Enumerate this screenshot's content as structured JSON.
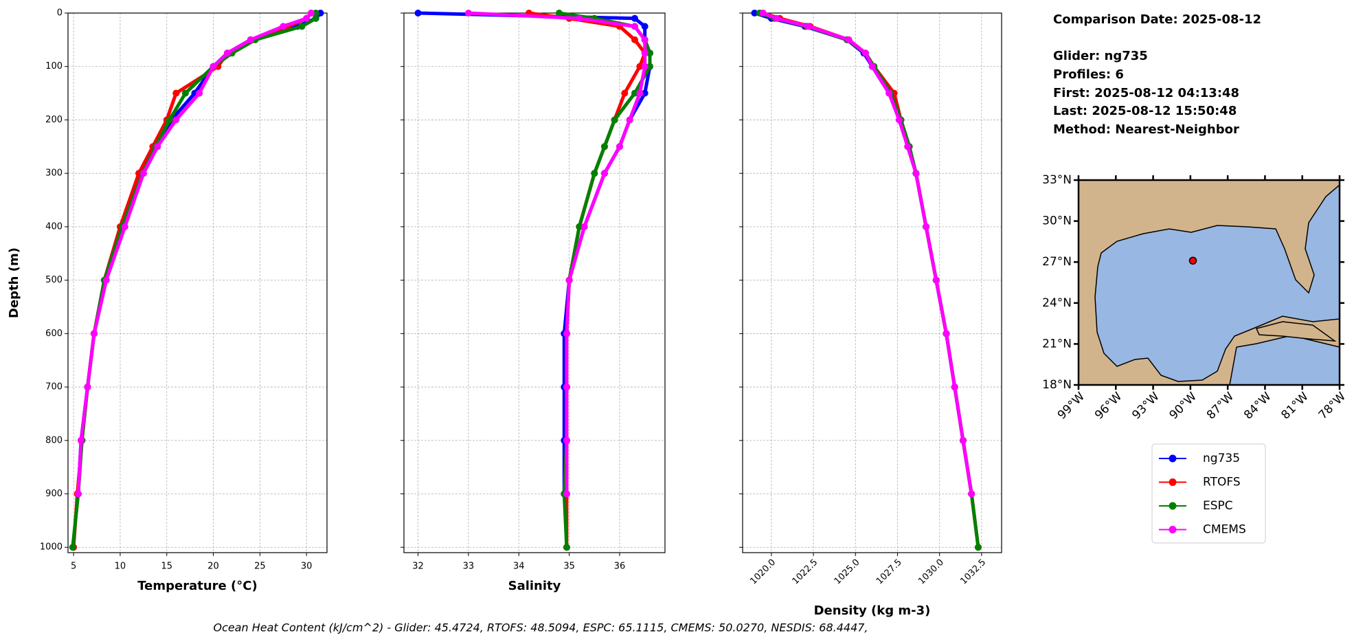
{
  "chart_data": [
    {
      "type": "line",
      "xlabel": "Temperature (°C)",
      "ylabel": "Depth (m)",
      "depths": [
        0,
        10,
        25,
        50,
        75,
        100,
        150,
        200,
        250,
        300,
        400,
        500,
        600,
        700,
        800,
        900,
        1000
      ],
      "ylim": [
        0,
        1010
      ],
      "yticks": [
        0,
        100,
        200,
        300,
        400,
        500,
        600,
        700,
        800,
        900,
        1000
      ],
      "xlim": [
        4.4,
        32.2
      ],
      "xticks": [
        5,
        10,
        15,
        20,
        25,
        30
      ],
      "grid": true,
      "series": [
        {
          "name": "ng735",
          "color": "#0000ff",
          "values": [
            31.5,
            31,
            29,
            24,
            21.5,
            20,
            18,
            15.5,
            14,
            12.5,
            10.5,
            8.5,
            7.2,
            6.5,
            5.8,
            5.5,
            null
          ]
        },
        {
          "name": "RTOFS",
          "color": "#ff0000",
          "values": [
            30.5,
            30,
            28,
            24,
            21.5,
            20.5,
            16,
            15,
            13.5,
            12,
            10,
            8.3,
            7.2,
            6.5,
            5.9,
            5.4,
            5.0
          ]
        },
        {
          "name": "ESPC",
          "color": "#008000",
          "values": [
            31,
            31,
            29.5,
            24.5,
            22,
            20,
            17,
            15.3,
            13.8,
            12.4,
            10.2,
            8.3,
            7.2,
            6.5,
            5.9,
            5.5,
            4.9
          ]
        },
        {
          "name": "CMEMS",
          "color": "#ff00ff",
          "values": [
            30.5,
            30,
            27.5,
            24,
            21.5,
            20,
            18.5,
            16,
            14,
            12.5,
            10.5,
            8.5,
            7.2,
            6.5,
            5.8,
            5.5,
            null
          ]
        }
      ]
    },
    {
      "type": "line",
      "xlabel": "Salinity",
      "xlim": [
        31.72,
        36.9
      ],
      "xticks": [
        32,
        33,
        34,
        35,
        36
      ],
      "grid": true,
      "series": [
        {
          "color": "#0000ff",
          "values": [
            32.0,
            36.3,
            36.5,
            36.5,
            36.6,
            36.6,
            36.5,
            36.2,
            36.0,
            35.7,
            35.3,
            35.0,
            34.9,
            34.9,
            34.9,
            34.9,
            null
          ]
        },
        {
          "color": "#ff0000",
          "values": [
            34.2,
            35.0,
            36.0,
            36.3,
            36.5,
            36.4,
            36.1,
            35.9,
            35.7,
            35.5,
            35.2,
            35.0,
            34.95,
            34.95,
            34.95,
            34.95,
            34.95
          ]
        },
        {
          "color": "#008000",
          "values": [
            34.8,
            35.5,
            36.3,
            36.5,
            36.6,
            36.6,
            36.3,
            35.9,
            35.7,
            35.5,
            35.2,
            35.0,
            34.95,
            34.95,
            34.95,
            34.9,
            34.95
          ]
        },
        {
          "color": "#ff00ff",
          "values": [
            33.0,
            35.2,
            36.3,
            36.5,
            36.5,
            36.5,
            36.4,
            36.2,
            36.0,
            35.7,
            35.3,
            35.0,
            34.95,
            34.95,
            34.95,
            34.95,
            null
          ]
        }
      ]
    },
    {
      "type": "line",
      "xlabel": "Density (kg m-3)",
      "xlim": [
        1018.29,
        1033.69
      ],
      "xticks": [
        {
          "value": 1020,
          "label": "1020.0"
        },
        {
          "value": 1022.5,
          "label": "1022.5"
        },
        {
          "value": 1025,
          "label": "1025.0"
        },
        {
          "value": 1027.5,
          "label": "1027.5"
        },
        {
          "value": 1030,
          "label": "1030.0"
        },
        {
          "value": 1032.5,
          "label": "1032.5"
        }
      ],
      "grid": true,
      "series": [
        {
          "color": "#0000ff",
          "values": [
            1019.0,
            1020.0,
            1022.0,
            1024.5,
            1025.5,
            1026.0,
            1027.0,
            1027.7,
            1028.2,
            1028.6,
            1029.2,
            1029.8,
            1030.4,
            1030.9,
            1031.4,
            1031.9,
            null
          ]
        },
        {
          "color": "#ff0000",
          "values": [
            1019.5,
            1020.5,
            1022.3,
            1024.6,
            1025.6,
            1026.1,
            1027.3,
            1027.7,
            1028.2,
            1028.6,
            1029.2,
            1029.8,
            1030.4,
            1030.9,
            1031.4,
            1031.9,
            1032.3
          ]
        },
        {
          "color": "#008000",
          "values": [
            1019.3,
            1020.2,
            1022.1,
            1024.5,
            1025.6,
            1026.1,
            1027.1,
            1027.7,
            1028.2,
            1028.6,
            1029.2,
            1029.8,
            1030.4,
            1030.9,
            1031.4,
            1031.9,
            1032.3
          ]
        },
        {
          "color": "#ff00ff",
          "values": [
            1019.5,
            1020.3,
            1022.2,
            1024.6,
            1025.6,
            1026.0,
            1027.0,
            1027.6,
            1028.1,
            1028.6,
            1029.2,
            1029.8,
            1030.4,
            1030.9,
            1031.4,
            1031.9,
            null
          ]
        }
      ]
    },
    {
      "type": "scatter",
      "xlim": [
        -99,
        -78
      ],
      "ylim": [
        18,
        33
      ],
      "xticks": [
        {
          "value": -99,
          "label": "99°W"
        },
        {
          "value": -96,
          "label": "96°W"
        },
        {
          "value": -93,
          "label": "93°W"
        },
        {
          "value": -90,
          "label": "90°W"
        },
        {
          "value": -87,
          "label": "87°W"
        },
        {
          "value": -84,
          "label": "84°W"
        },
        {
          "value": -81,
          "label": "81°W"
        },
        {
          "value": -78,
          "label": "78°W"
        }
      ],
      "yticks": [
        {
          "value": 18,
          "label": "18°N"
        },
        {
          "value": 21,
          "label": "21°N"
        },
        {
          "value": 24,
          "label": "24°N"
        },
        {
          "value": 27,
          "label": "27°N"
        },
        {
          "value": 30,
          "label": "30°N"
        },
        {
          "value": 33,
          "label": "33°N"
        }
      ],
      "x": [
        -89.8
      ],
      "y": [
        27.1
      ],
      "color": "#ff0000"
    }
  ],
  "info": {
    "comparison": "Comparison Date: 2025-08-12",
    "glider": "Glider: ng735",
    "profiles": "Profiles: 6",
    "first": "First: 2025-08-12 04:13:48",
    "last": "Last: 2025-08-12 15:50:48",
    "method": "Method: Nearest-Neighbor"
  },
  "footer": "Ocean Heat Content (kJ/cm^2) - Glider: 45.4724,  RTOFS: 48.5094,  ESPC: 65.1115,  CMEMS: 50.0270,  NESDIS: 68.4447,"
}
